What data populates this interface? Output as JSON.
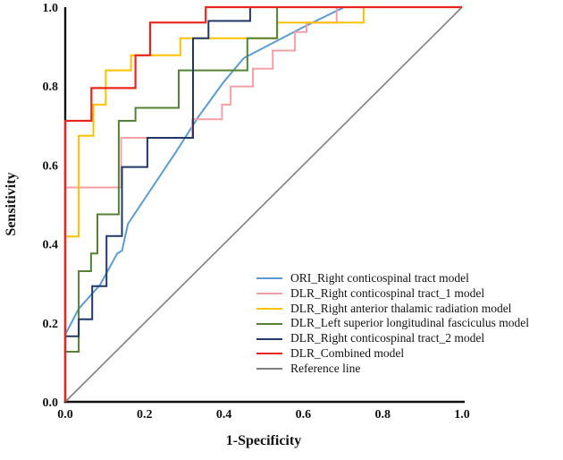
{
  "figure": {
    "type": "roc-curve-figure",
    "background": "#ffffff",
    "axis_color": "#111111"
  },
  "chart_data": {
    "type": "line",
    "subtype": "roc-step-curves",
    "title": "",
    "xlabel": "1-Specificity",
    "ylabel": "Sensitivity",
    "xlim": [
      0,
      1
    ],
    "ylim": [
      0,
      1
    ],
    "grid": false,
    "legend_position": "lower-right-inside",
    "x_ticks": {
      "values": [
        0,
        0.2,
        0.4,
        0.6,
        0.8,
        1.0
      ],
      "labels": [
        "0.0",
        "0.2",
        "0.4",
        "0.6",
        "0.8",
        "1.0"
      ]
    },
    "y_ticks": {
      "values": [
        0,
        0.2,
        0.4,
        0.6,
        0.8,
        1.0
      ],
      "labels": [
        "0.0",
        "0.2",
        "0.4",
        "0.6",
        "0.8",
        "1.0"
      ]
    },
    "series": [
      {
        "name": "Reference line",
        "color": "#7F7F7F",
        "width": 1.6,
        "points": [
          [
            0,
            0
          ],
          [
            1,
            1
          ]
        ]
      },
      {
        "name": "ORI_Right conticospinal tract model",
        "color": "#5B9BD5",
        "width": 2,
        "points": [
          [
            0,
            0
          ],
          [
            0,
            0.17
          ],
          [
            0.034,
            0.236
          ],
          [
            0.088,
            0.297
          ],
          [
            0.131,
            0.376
          ],
          [
            0.143,
            0.383
          ],
          [
            0.158,
            0.451
          ],
          [
            0.279,
            0.633
          ],
          [
            0.336,
            0.723
          ],
          [
            0.399,
            0.81
          ],
          [
            0.45,
            0.871
          ],
          [
            0.601,
            0.95
          ],
          [
            0.703,
            1.0
          ],
          [
            1,
            1
          ]
        ]
      },
      {
        "name": "DLR_Right conticospinal tract_1 model",
        "color": "#F59FA6",
        "width": 2,
        "points": [
          [
            0,
            0
          ],
          [
            0,
            0.543
          ],
          [
            0.141,
            0.543
          ],
          [
            0.141,
            0.669
          ],
          [
            0.32,
            0.669
          ],
          [
            0.32,
            0.716
          ],
          [
            0.395,
            0.716
          ],
          [
            0.395,
            0.753
          ],
          [
            0.417,
            0.753
          ],
          [
            0.417,
            0.799
          ],
          [
            0.473,
            0.799
          ],
          [
            0.473,
            0.844
          ],
          [
            0.523,
            0.844
          ],
          [
            0.523,
            0.89
          ],
          [
            0.579,
            0.89
          ],
          [
            0.579,
            0.937
          ],
          [
            0.608,
            0.937
          ],
          [
            0.608,
            0.961
          ],
          [
            0.684,
            0.961
          ],
          [
            0.684,
            1.0
          ],
          [
            1,
            1
          ]
        ]
      },
      {
        "name": "DLR_Right anterior thalamic radiation model",
        "color": "#FFC000",
        "width": 2,
        "points": [
          [
            0,
            0
          ],
          [
            0,
            0.419
          ],
          [
            0.034,
            0.419
          ],
          [
            0.034,
            0.674
          ],
          [
            0.071,
            0.674
          ],
          [
            0.071,
            0.753
          ],
          [
            0.102,
            0.753
          ],
          [
            0.102,
            0.84
          ],
          [
            0.166,
            0.84
          ],
          [
            0.166,
            0.878
          ],
          [
            0.29,
            0.878
          ],
          [
            0.29,
            0.921
          ],
          [
            0.534,
            0.921
          ],
          [
            0.534,
            0.961
          ],
          [
            0.752,
            0.961
          ],
          [
            0.752,
            1.0
          ],
          [
            1,
            1
          ]
        ]
      },
      {
        "name": "DLR_Left superior longitudinal fasciculus model",
        "color": "#538135",
        "width": 2,
        "points": [
          [
            0,
            0
          ],
          [
            0,
            0.127
          ],
          [
            0.034,
            0.127
          ],
          [
            0.034,
            0.331
          ],
          [
            0.065,
            0.331
          ],
          [
            0.065,
            0.376
          ],
          [
            0.081,
            0.376
          ],
          [
            0.081,
            0.475
          ],
          [
            0.135,
            0.475
          ],
          [
            0.135,
            0.712
          ],
          [
            0.177,
            0.712
          ],
          [
            0.177,
            0.745
          ],
          [
            0.286,
            0.745
          ],
          [
            0.286,
            0.84
          ],
          [
            0.459,
            0.84
          ],
          [
            0.459,
            0.921
          ],
          [
            0.534,
            0.921
          ],
          [
            0.534,
            1.0
          ],
          [
            1,
            1
          ]
        ]
      },
      {
        "name": "DLR_Right conticospinal tract_2 model",
        "color": "#1F3864",
        "width": 2,
        "points": [
          [
            0,
            0
          ],
          [
            0,
            0.166
          ],
          [
            0.034,
            0.166
          ],
          [
            0.034,
            0.209
          ],
          [
            0.068,
            0.209
          ],
          [
            0.068,
            0.293
          ],
          [
            0.104,
            0.293
          ],
          [
            0.104,
            0.42
          ],
          [
            0.143,
            0.42
          ],
          [
            0.143,
            0.595
          ],
          [
            0.207,
            0.595
          ],
          [
            0.207,
            0.669
          ],
          [
            0.322,
            0.669
          ],
          [
            0.322,
            0.921
          ],
          [
            0.361,
            0.921
          ],
          [
            0.361,
            0.965
          ],
          [
            0.466,
            0.965
          ],
          [
            0.466,
            1.0
          ],
          [
            1,
            1
          ]
        ]
      },
      {
        "name": "DLR_Combined model",
        "color": "#E8261D",
        "width": 2.2,
        "points": [
          [
            0,
            0
          ],
          [
            0,
            0.712
          ],
          [
            0.066,
            0.712
          ],
          [
            0.066,
            0.795
          ],
          [
            0.177,
            0.795
          ],
          [
            0.177,
            0.878
          ],
          [
            0.214,
            0.878
          ],
          [
            0.214,
            0.961
          ],
          [
            0.354,
            0.961
          ],
          [
            0.354,
            1.0
          ],
          [
            1,
            1
          ]
        ]
      }
    ]
  },
  "legend": {
    "items": [
      {
        "label": "ORI_Right conticospinal tract model",
        "color": "#5B9BD5"
      },
      {
        "label": "DLR_Right conticospinal tract_1 model",
        "color": "#F59FA6"
      },
      {
        "label": "DLR_Right anterior thalamic radiation model",
        "color": "#FFC000"
      },
      {
        "label": "DLR_Left superior longitudinal fasciculus model",
        "color": "#538135"
      },
      {
        "label": "DLR_Right conticospinal tract_2 model",
        "color": "#1F3864"
      },
      {
        "label": "DLR_Combined model",
        "color": "#E8261D"
      },
      {
        "label": "Reference line",
        "color": "#7F7F7F"
      }
    ]
  }
}
